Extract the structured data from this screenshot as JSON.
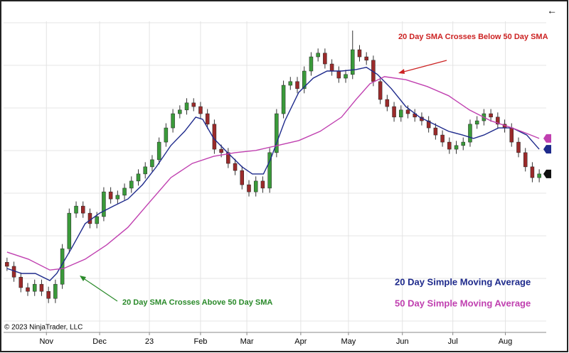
{
  "chart_data": {
    "type": "candlestick",
    "x": [
      0,
      1,
      2,
      3,
      4,
      5,
      6,
      7,
      8,
      9,
      10,
      11,
      12,
      13,
      14,
      15,
      16,
      17,
      18,
      19,
      20,
      21,
      22,
      23,
      24,
      25,
      26,
      27,
      28,
      29,
      30,
      31,
      32,
      33,
      34,
      35,
      36,
      37,
      38,
      39,
      40,
      41,
      42,
      43,
      44,
      45,
      46,
      47,
      48,
      49,
      50,
      51,
      52,
      53,
      54,
      55,
      56,
      57,
      58,
      59,
      60,
      61,
      62,
      63,
      64,
      65,
      66,
      67,
      68,
      69,
      70,
      71,
      72,
      73,
      74,
      75,
      76,
      77
    ],
    "open": [
      22.0,
      20.7,
      17.2,
      13.8,
      12.6,
      14.9,
      12.6,
      10.3,
      14.9,
      26.4,
      37.9,
      40.2,
      37.9,
      34.5,
      36.8,
      44.8,
      42.5,
      43.7,
      46.0,
      48.3,
      50.6,
      52.9,
      55.2,
      60.9,
      65.5,
      70.1,
      71.3,
      73.6,
      72.4,
      70.1,
      66.7,
      58.6,
      57.5,
      54.0,
      51.7,
      47.1,
      44.8,
      48.3,
      46.0,
      57.5,
      70.1,
      79.3,
      80.5,
      78.2,
      83.9,
      88.5,
      89.7,
      86.2,
      83.9,
      81.6,
      82.8,
      90.8,
      88.5,
      87.4,
      80.5,
      74.7,
      72.4,
      69.0,
      71.3,
      70.1,
      69.0,
      67.8,
      65.5,
      63.2,
      60.9,
      58.6,
      59.8,
      60.9,
      66.7,
      67.8,
      70.1,
      69.0,
      66.7,
      65.5,
      60.9,
      57.5,
      52.9,
      49.4
    ],
    "high": [
      23.5,
      22.2,
      18.7,
      15.3,
      16.4,
      16.4,
      14.1,
      16.4,
      27.9,
      39.4,
      41.7,
      41.7,
      39.4,
      38.3,
      46.3,
      46.3,
      45.2,
      47.5,
      49.8,
      52.1,
      54.4,
      56.7,
      62.4,
      67.0,
      71.6,
      72.8,
      75.1,
      75.1,
      73.9,
      71.6,
      68.2,
      60.1,
      59.0,
      55.5,
      53.2,
      48.6,
      49.8,
      49.8,
      59.0,
      71.6,
      80.8,
      82.0,
      82.0,
      85.4,
      90.0,
      91.2,
      91.2,
      87.7,
      85.4,
      84.3,
      97.0,
      92.3,
      90.0,
      88.9,
      82.0,
      76.2,
      73.9,
      72.8,
      72.8,
      71.6,
      70.5,
      69.3,
      67.0,
      64.7,
      62.4,
      61.3,
      62.4,
      68.2,
      69.3,
      71.6,
      71.6,
      70.5,
      68.2,
      67.0,
      62.4,
      59.0,
      54.4,
      52.1
    ],
    "low": [
      19.2,
      15.7,
      12.3,
      11.1,
      11.1,
      11.1,
      8.8,
      8.8,
      13.4,
      24.9,
      36.4,
      36.4,
      33.0,
      33.0,
      35.3,
      41.0,
      41.0,
      42.2,
      44.5,
      46.8,
      49.1,
      51.4,
      53.7,
      59.4,
      64.0,
      68.6,
      69.8,
      70.9,
      68.6,
      65.2,
      57.1,
      56.0,
      52.5,
      50.2,
      45.6,
      43.3,
      43.3,
      44.5,
      44.5,
      56.0,
      68.6,
      77.8,
      76.7,
      76.7,
      82.4,
      87.0,
      84.7,
      82.4,
      80.1,
      80.1,
      81.3,
      87.0,
      85.9,
      79.0,
      73.2,
      70.9,
      67.5,
      67.5,
      68.6,
      67.5,
      66.3,
      64.0,
      61.7,
      59.4,
      57.1,
      57.1,
      58.3,
      59.4,
      65.2,
      66.3,
      67.5,
      65.2,
      64.0,
      59.4,
      56.0,
      51.4,
      47.9,
      47.9
    ],
    "close": [
      20.7,
      17.2,
      13.8,
      12.6,
      14.9,
      12.6,
      10.3,
      14.9,
      26.4,
      37.9,
      40.2,
      37.9,
      34.5,
      36.8,
      44.8,
      42.5,
      43.7,
      46.0,
      48.3,
      50.6,
      52.9,
      55.2,
      60.9,
      65.5,
      70.1,
      71.3,
      73.6,
      72.4,
      70.1,
      66.7,
      58.6,
      57.5,
      54.0,
      51.7,
      47.1,
      44.8,
      48.3,
      46.0,
      57.5,
      70.1,
      79.3,
      80.5,
      78.2,
      83.9,
      88.5,
      89.7,
      86.2,
      83.9,
      81.6,
      82.8,
      90.8,
      88.5,
      87.4,
      80.5,
      74.7,
      72.4,
      69.0,
      71.3,
      70.1,
      69.0,
      67.8,
      65.5,
      63.2,
      60.9,
      58.6,
      59.8,
      60.9,
      66.7,
      67.8,
      70.1,
      69.0,
      66.7,
      65.5,
      60.9,
      57.5,
      52.9,
      49.4,
      50.6
    ],
    "up_color": "#3a9a3a",
    "down_color": "#9b2a2a",
    "series": [
      {
        "name": "20 Day Simple Moving Average",
        "color": "#1e2a8c",
        "x": [
          0,
          2.1,
          4.1,
          6.2,
          7.2,
          9.3,
          11.3,
          13.4,
          15.4,
          17.5,
          19.6,
          21.6,
          23.7,
          25.7,
          27.3,
          28.3,
          29.9,
          31.9,
          34.0,
          35.5,
          37.1,
          38.1,
          40.2,
          42.2,
          44.3,
          46.3,
          48.4,
          50.5,
          52.0,
          53.6,
          55.6,
          57.7,
          59.7,
          61.8,
          63.9,
          65.9,
          67.5,
          69.0,
          71.1,
          73.1,
          75.2,
          77.0
        ],
        "values": [
          20.0,
          18.4,
          18.4,
          16.1,
          18.4,
          26.4,
          34.5,
          37.9,
          40.2,
          42.5,
          47.1,
          52.9,
          59.8,
          64.4,
          69.0,
          68.3,
          62.1,
          57.5,
          52.9,
          50.6,
          50.6,
          55.2,
          67.8,
          77.0,
          81.6,
          83.9,
          83.9,
          84.4,
          85.1,
          82.8,
          78.2,
          72.4,
          69.0,
          66.7,
          64.4,
          63.2,
          62.1,
          63.2,
          65.5,
          65.5,
          63.2,
          58.6
        ]
      },
      {
        "name": "50 Day Simple Moving Average",
        "color": "#c040b0",
        "x": [
          0,
          3.1,
          6.2,
          8.2,
          11.3,
          14.4,
          17.5,
          20.6,
          23.7,
          26.8,
          29.9,
          33.0,
          36.0,
          39.1,
          42.2,
          45.3,
          48.4,
          50.5,
          52.5,
          54.6,
          57.7,
          60.8,
          63.9,
          66.9,
          70.0,
          73.1,
          75.2,
          77.0
        ],
        "values": [
          25.3,
          23.0,
          19.5,
          20.0,
          23.0,
          27.6,
          33.3,
          41.4,
          49.4,
          54.0,
          56.3,
          57.5,
          58.2,
          59.8,
          61.4,
          64.4,
          69.0,
          74.7,
          79.8,
          82.1,
          81.1,
          78.9,
          75.9,
          71.3,
          67.8,
          65.5,
          63.7,
          62.1
        ]
      }
    ],
    "xlim": [
      -0.5,
      77.5
    ],
    "ylim": [
      0,
      100
    ],
    "xticks": [
      {
        "value": 5.7,
        "label": "Nov"
      },
      {
        "value": 13.4,
        "label": "Dec"
      },
      {
        "value": 20.6,
        "label": "23"
      },
      {
        "value": 28,
        "label": "Feb"
      },
      {
        "value": 34.7,
        "label": "Mar"
      },
      {
        "value": 42.5,
        "label": "Apr"
      },
      {
        "value": 49.4,
        "label": "May"
      },
      {
        "value": 57.2,
        "label": "Jun"
      },
      {
        "value": 64.5,
        "label": "Jul"
      },
      {
        "value": 72.1,
        "label": "Aug"
      }
    ],
    "annotations": [
      {
        "text": "20 Day SMA Crosses Below 50 Day SMA",
        "color": "#cc2222"
      },
      {
        "text": "20 Day SMA Crosses Above 50 Day SMA",
        "color": "#2a8a2a"
      }
    ],
    "copyright": "© 2023 NinjaTrader, LLC"
  }
}
